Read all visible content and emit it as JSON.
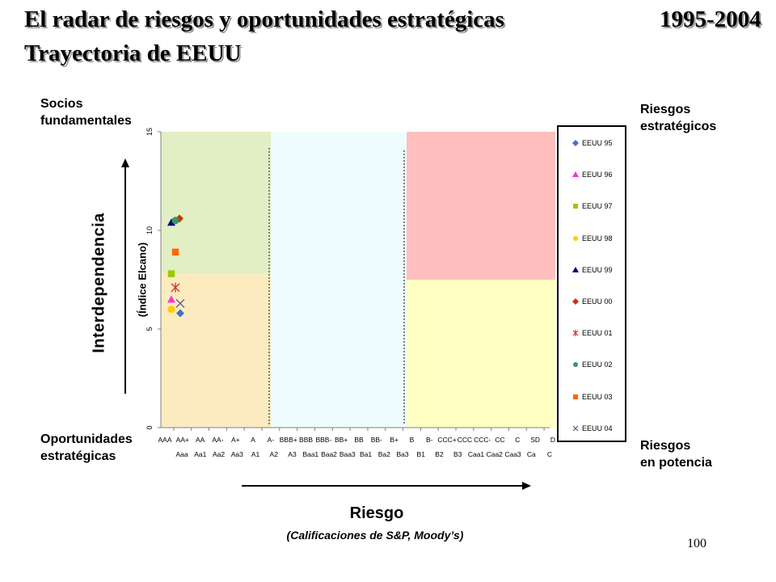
{
  "header": {
    "title_line1": "El radar de riesgos y oportunidades estratégicas",
    "title_line2": "Trayectoria de EEUU",
    "years": "1995-2004"
  },
  "quadrants": {
    "top_left": [
      "Socios",
      "fundamentales"
    ],
    "top_right": [
      "Riesgos",
      "estratégicos"
    ],
    "bottom_left": [
      "Oportunidades",
      "estratégicas"
    ],
    "bottom_right": [
      "Riesgos",
      "en potencia"
    ],
    "colors": {
      "top_left": "#e2efc4",
      "bottom_left": "#fdebc0",
      "middle": "#eefcfd",
      "top_right": "#ffbfbf",
      "bottom_right": "#ffffc4"
    }
  },
  "footer": {
    "page_number": "100"
  },
  "chart_data": {
    "type": "scatter",
    "ylabel": "Interdependencia",
    "ylabel_sub": "(Índice Elcano)",
    "xlabel": "Riesgo",
    "xlabel_sub": "(Calificaciones de S&P, Moody’s)",
    "ylim": [
      0,
      15
    ],
    "yticks": [
      0,
      5,
      10,
      15
    ],
    "x_tick_labels_sp": [
      "AAA",
      "AA+",
      "AA",
      "AA-",
      "A+",
      "A",
      "A-",
      "BBB+",
      "BBB",
      "BBB-",
      "BB+",
      "BB",
      "BB-",
      "B+",
      "B",
      "B-",
      "CCC+",
      "CCC",
      "CCC-",
      "CC",
      "C",
      "SD",
      "D"
    ],
    "x_tick_labels_moodys": [
      "Aaa",
      "Aa1",
      "Aa2",
      "Aa3",
      "A1",
      "A2",
      "A3",
      "Baa1",
      "Baa2",
      "Baa3",
      "Ba1",
      "Ba2",
      "Ba3",
      "B1",
      "B2",
      "B3",
      "Caa1",
      "Caa2",
      "Caa3",
      "Ca",
      "C"
    ],
    "series": [
      {
        "name": "EEUU 95",
        "x": "AAA",
        "y": 5.8,
        "color": "#4472c4",
        "marker": "diamond"
      },
      {
        "name": "EEUU 96",
        "x": "AAA",
        "y": 6.5,
        "color": "#ff33cc",
        "marker": "triangle"
      },
      {
        "name": "EEUU 97",
        "x": "AAA",
        "y": 7.8,
        "color": "#99cc00",
        "marker": "square"
      },
      {
        "name": "EEUU 98",
        "x": "AAA",
        "y": 6.0,
        "color": "#ffcc00",
        "marker": "circle"
      },
      {
        "name": "EEUU 99",
        "x": "AAA",
        "y": 10.4,
        "color": "#000080",
        "marker": "triangle"
      },
      {
        "name": "EEUU 00",
        "x": "AAA",
        "y": 10.6,
        "color": "#cc3300",
        "marker": "diamond"
      },
      {
        "name": "EEUU 01",
        "x": "AAA",
        "y": 7.1,
        "color": "#cc3333",
        "marker": "star"
      },
      {
        "name": "EEUU 02",
        "x": "AAA",
        "y": 10.5,
        "color": "#339966",
        "marker": "circle"
      },
      {
        "name": "EEUU 03",
        "x": "AAA",
        "y": 8.9,
        "color": "#ff6600",
        "marker": "square"
      },
      {
        "name": "EEUU 04",
        "x": "AAA",
        "y": 6.3,
        "color": "#555599",
        "marker": "x"
      }
    ]
  }
}
